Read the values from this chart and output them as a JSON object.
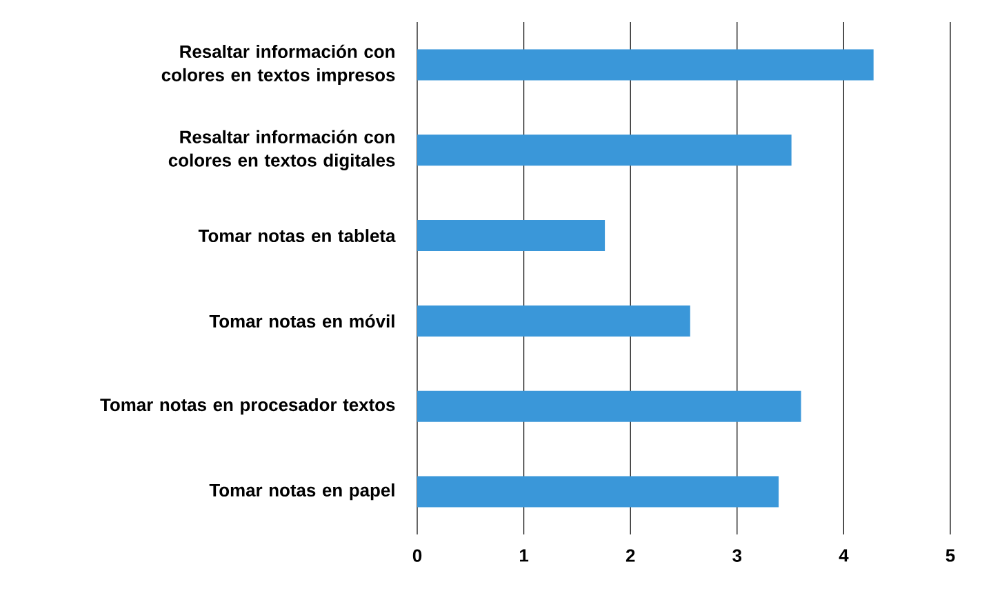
{
  "chart_data": {
    "type": "bar",
    "orientation": "horizontal",
    "categories": [
      "Resaltar información con colores en textos impresos",
      "Resaltar información con colores en textos digitales",
      "Tomar notas en tableta",
      "Tomar notas en móvil",
      "Tomar notas en procesador textos",
      "Tomar notas en papel"
    ],
    "values": [
      4.28,
      3.51,
      1.76,
      2.56,
      3.6,
      3.39
    ],
    "color": "#3a97d9",
    "xlim": [
      0,
      5
    ],
    "xticks": [
      0,
      1,
      2,
      3,
      4,
      5
    ],
    "grid": "x"
  }
}
